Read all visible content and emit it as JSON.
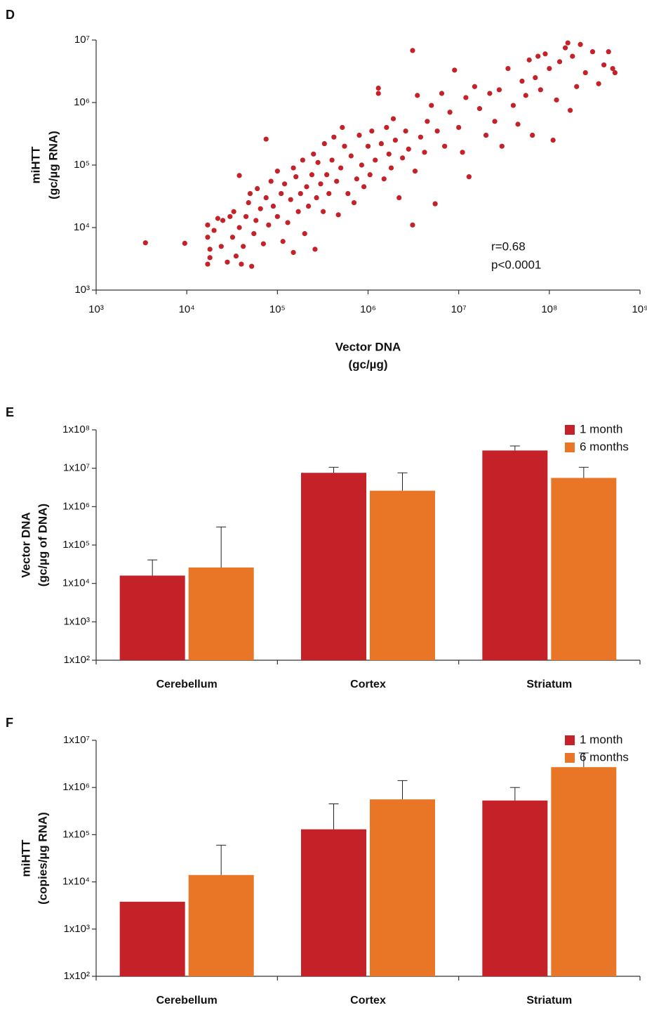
{
  "chart_data": [
    {
      "type": "scatter",
      "panel": "D",
      "color": "#c42129",
      "xlog": true,
      "ylog": true,
      "xlabel": [
        "Vector DNA",
        "(gc/µg)"
      ],
      "ylabel": [
        "miHTT",
        "(gc/µg RNA)"
      ],
      "annotations": [
        "r=0.68",
        "p<0.0001"
      ],
      "xlim": [
        1000.0,
        1000000000.0
      ],
      "xticks": [
        {
          "value": 1000.0,
          "label": "10³"
        },
        {
          "value": 10000.0,
          "label": "10⁴"
        },
        {
          "value": 100000.0,
          "label": "10⁵"
        },
        {
          "value": 1000000.0,
          "label": "10⁶"
        },
        {
          "value": 10000000.0,
          "label": "10⁷"
        },
        {
          "value": 100000000.0,
          "label": "10⁸"
        },
        {
          "value": 1000000000.0,
          "label": "10⁹"
        }
      ],
      "ylim": [
        1000.0,
        10000000.0
      ],
      "yticks": [
        {
          "value": 1000.0,
          "label": "10³"
        },
        {
          "value": 10000.0,
          "label": "10⁴"
        },
        {
          "value": 100000.0,
          "label": "10⁵"
        },
        {
          "value": 1000000.0,
          "label": "10⁶"
        },
        {
          "value": 10000000.0,
          "label": "10⁷"
        }
      ],
      "x": [
        3500.0,
        9500.0,
        17000.0,
        17000.0,
        18000.0,
        18000.0,
        17000.0,
        20000.0,
        22000.0,
        24000.0,
        25000.0,
        28000.0,
        30000.0,
        32000.0,
        33000.0,
        35000.0,
        38000.0,
        38000.0,
        40000.0,
        42000.0,
        45000.0,
        48000.0,
        50000.0,
        52000.0,
        55000.0,
        58000.0,
        60000.0,
        65000.0,
        70000.0,
        75000.0,
        75000.0,
        80000.0,
        85000.0,
        90000.0,
        100000.0,
        100000.0,
        110000.0,
        115000.0,
        120000.0,
        130000.0,
        140000.0,
        150000.0,
        150000.0,
        160000.0,
        170000.0,
        180000.0,
        190000.0,
        200000.0,
        210000.0,
        220000.0,
        240000.0,
        250000.0,
        260000.0,
        270000.0,
        280000.0,
        300000.0,
        320000.0,
        330000.0,
        350000.0,
        370000.0,
        400000.0,
        420000.0,
        450000.0,
        470000.0,
        500000.0,
        520000.0,
        550000.0,
        600000.0,
        650000.0,
        700000.0,
        750000.0,
        800000.0,
        850000.0,
        900000.0,
        1000000.0,
        1050000.0,
        1100000.0,
        1200000.0,
        1300000.0,
        1300000.0,
        1400000.0,
        1500000.0,
        1600000.0,
        1700000.0,
        1800000.0,
        1900000.0,
        2000000.0,
        2200000.0,
        2400000.0,
        2600000.0,
        2800000.0,
        3100000.0,
        3100000.0,
        3300000.0,
        3500000.0,
        3800000.0,
        4200000.0,
        4500000.0,
        5000000.0,
        5500000.0,
        5800000.0,
        6500000.0,
        7000000.0,
        8000000.0,
        9000000.0,
        10000000.0,
        11000000.0,
        12000000.0,
        13000000.0,
        15000000.0,
        17000000.0,
        20000000.0,
        22000000.0,
        25000000.0,
        28000000.0,
        30000000.0,
        35000000.0,
        40000000.0,
        45000000.0,
        50000000.0,
        55000000.0,
        60000000.0,
        65000000.0,
        70000000.0,
        75000000.0,
        80000000.0,
        90000000.0,
        100000000.0,
        110000000.0,
        120000000.0,
        130000000.0,
        150000000.0,
        160000000.0,
        170000000.0,
        180000000.0,
        200000000.0,
        220000000.0,
        250000000.0,
        300000000.0,
        350000000.0,
        400000000.0,
        450000000.0,
        500000000.0,
        530000000.0
      ],
      "y": [
        5700.0,
        5600.0,
        11000.0,
        7000.0,
        4500.0,
        3300.0,
        2600.0,
        9000.0,
        14000.0,
        5000.0,
        13000.0,
        2800.0,
        15000.0,
        7000.0,
        18000.0,
        3500.0,
        10000.0,
        68000.0,
        2600.0,
        5000.0,
        15000.0,
        25000.0,
        35000.0,
        2400.0,
        8000.0,
        13000.0,
        42000.0,
        20000.0,
        5500.0,
        260000.0,
        30000.0,
        11000.0,
        55000.0,
        22000.0,
        15000.0,
        80000.0,
        35000.0,
        6000.0,
        50000.0,
        12000.0,
        28000.0,
        4000.0,
        90000.0,
        65000.0,
        18000.0,
        35000.0,
        120000.0,
        8000.0,
        45000.0,
        22000.0,
        70000.0,
        150000.0,
        4500.0,
        30000.0,
        110000.0,
        50000.0,
        18000.0,
        220000.0,
        70000.0,
        35000.0,
        120000.0,
        280000.0,
        55000.0,
        16000.0,
        90000.0,
        400000.0,
        200000.0,
        35000.0,
        140000.0,
        25000.0,
        60000.0,
        300000.0,
        100000.0,
        45000.0,
        200000.0,
        70000.0,
        350000.0,
        120000.0,
        1700000.0,
        1400000.0,
        220000.0,
        60000.0,
        400000.0,
        150000.0,
        90000.0,
        550000.0,
        250000.0,
        30000.0,
        130000.0,
        350000.0,
        180000.0,
        6800000.0,
        11000.0,
        80000.0,
        1300000.0,
        280000.0,
        160000.0,
        500000.0,
        900000.0,
        24000.0,
        350000.0,
        1400000.0,
        200000.0,
        700000.0,
        3300000.0,
        400000.0,
        160000.0,
        1200000.0,
        65000.0,
        1800000.0,
        800000.0,
        300000.0,
        1400000.0,
        500000.0,
        1600000.0,
        200000.0,
        3500000.0,
        900000.0,
        450000.0,
        2200000.0,
        1300000.0,
        4800000.0,
        300000.0,
        2500000.0,
        5500000.0,
        1600000.0,
        6000000.0,
        3500000.0,
        250000.0,
        1100000.0,
        4500000.0,
        7500000.0,
        9000000.0,
        750000.0,
        5500000.0,
        1800000.0,
        8500000.0,
        3000000.0,
        6500000.0,
        2000000.0,
        4000000.0,
        6500000.0,
        3500000.0,
        3000000.0
      ]
    },
    {
      "type": "bar",
      "panel": "E",
      "log": true,
      "legend": "top-right",
      "ylabel": [
        "Vector DNA",
        "(gc/µg of DNA)"
      ],
      "categories": [
        "Cerebellum",
        "Cortex",
        "Striatum"
      ],
      "ylim": [
        100.0,
        100000000.0
      ],
      "yticks": [
        {
          "value": 100.0,
          "label": "1x10²"
        },
        {
          "value": 1000.0,
          "label": "1x10³"
        },
        {
          "value": 10000.0,
          "label": "1x10⁴"
        },
        {
          "value": 100000.0,
          "label": "1x10⁵"
        },
        {
          "value": 1000000.0,
          "label": "1x10⁶"
        },
        {
          "value": 10000000.0,
          "label": "1x10⁷"
        },
        {
          "value": 100000000.0,
          "label": "1x10⁸"
        }
      ],
      "series": [
        {
          "name": "1 month",
          "color": "#c42129",
          "values": [
            16000.0,
            7600000.0,
            29000000.0
          ],
          "errors": [
            25000.0,
            3000000.0,
            9000000.0
          ]
        },
        {
          "name": "6 months",
          "color": "#e97527",
          "values": [
            26000.0,
            2600000.0,
            5600000.0
          ],
          "errors": [
            270000.0,
            5000000.0,
            5000000.0
          ]
        }
      ]
    },
    {
      "type": "bar",
      "panel": "F",
      "log": true,
      "legend": "top-right",
      "ylabel": [
        "miHTT",
        "(copies/µg RNA)"
      ],
      "categories": [
        "Cerebellum",
        "Cortex",
        "Striatum"
      ],
      "ylim": [
        100.0,
        10000000.0
      ],
      "yticks": [
        {
          "value": 100.0,
          "label": "1x10²"
        },
        {
          "value": 1000.0,
          "label": "1x10³"
        },
        {
          "value": 10000.0,
          "label": "1x10⁴"
        },
        {
          "value": 100000.0,
          "label": "1x10⁵"
        },
        {
          "value": 1000000.0,
          "label": "1x10⁶"
        },
        {
          "value": 10000000.0,
          "label": "1x10⁷"
        }
      ],
      "series": [
        {
          "name": "1 month",
          "color": "#c42129",
          "values": [
            3800.0,
            130000.0,
            530000.0
          ],
          "errors": [
            null,
            320000.0,
            470000.0
          ]
        },
        {
          "name": "6 months",
          "color": "#e97527",
          "values": [
            14000.0,
            560000.0,
            2700000.0
          ],
          "errors": [
            46000.0,
            840000.0,
            2700000.0
          ]
        }
      ]
    }
  ]
}
